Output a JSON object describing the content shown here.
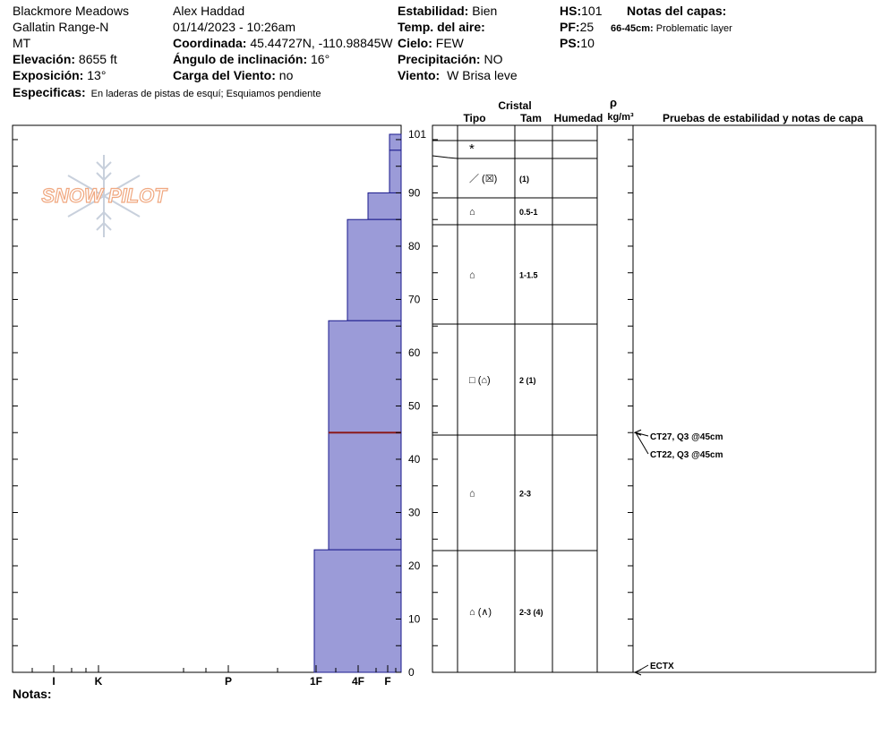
{
  "header": {
    "location": "Blackmore Meadows",
    "range": "Gallatin Range-N",
    "state": "MT",
    "elevation_label": "Elevación:",
    "elevation_value": "8655 ft",
    "aspect_label": "Exposición:",
    "aspect_value": "13°",
    "specifics_label": "Especificas:",
    "specifics_value": "En laderas de pistas de esquí; Esquiamos pendiente",
    "observer": "Alex Haddad",
    "datetime": "01/14/2023 - 10:26am",
    "coord_label": "Coordinada:",
    "coord_value": "45.44727N, -110.98845W",
    "slope_label": "Ángulo de inclinación:",
    "slope_value": "16°",
    "wind_load_label": "Carga del Viento:",
    "wind_load_value": "no",
    "stability_label": "Estabilidad:",
    "stability_value": "Bien",
    "air_temp_label": "Temp. del aire:",
    "sky_label": "Cielo:",
    "sky_value": "FEW",
    "precip_label": "Precipitación:",
    "precip_value": "NO",
    "wind_label": "Viento:",
    "wind_value": "W Brisa leve",
    "hs_label": "HS:",
    "hs_value": "101",
    "pf_label": "PF:",
    "pf_value": "25",
    "ps_label": "PS:",
    "ps_value": "10",
    "layer_notes_label": "Notas del capas:",
    "layer_note_range": "66-45cm:",
    "layer_note_text": "Problematic layer"
  },
  "logo_text": "SNOW PILOT",
  "notes_label": "Notas:",
  "columns": {
    "crystal": "Cristal",
    "type": "Tipo",
    "size": "Tam",
    "moisture": "Humedad",
    "density_symbol": "ρ",
    "density_unit": "kg/m³",
    "tests": "Pruebas de estabilidad y notas de capa"
  },
  "colors": {
    "hardness_fill": "#9b9bd8",
    "hardness_stroke": "#1a1a8c",
    "problem_layer": "#8b1a1a",
    "logo": "#f0a880"
  },
  "chart_data": {
    "type": "snow_profile",
    "depth_range": [
      0,
      101
    ],
    "depth_ticks": [
      0,
      10,
      20,
      30,
      40,
      50,
      60,
      70,
      80,
      90,
      101
    ],
    "hardness_scale": [
      "F",
      "4F",
      "1F",
      "P",
      "K",
      "I"
    ],
    "hardness_tick_labels": [
      "I",
      "K",
      "P",
      "1F",
      "4F",
      "F"
    ],
    "layers": [
      {
        "top": 101,
        "bottom": 98,
        "hardness": "F",
        "grain": "*",
        "size": ""
      },
      {
        "top": 98,
        "bottom": 90,
        "hardness": "F-",
        "grain": "／ (☒)",
        "size": "(1)"
      },
      {
        "top": 90,
        "bottom": 85,
        "hardness": "F+",
        "grain": "⌂",
        "size": "0.5-1"
      },
      {
        "top": 85,
        "bottom": 66,
        "hardness": "4F",
        "grain": "⌂",
        "size": "1-1.5"
      },
      {
        "top": 66,
        "bottom": 45,
        "hardness": "4F-",
        "grain": "□ (⌂)",
        "size": "2 (1)"
      },
      {
        "top": 45,
        "bottom": 23,
        "hardness": "4F-",
        "grain": "⌂",
        "size": "2-3"
      },
      {
        "top": 23,
        "bottom": 0,
        "hardness": "1F+",
        "grain": "⌂ (∧)",
        "size": "2-3 (4)"
      }
    ],
    "problem_layer_depth": 45,
    "tests": [
      {
        "depth": 45,
        "label": "CT27, Q3 @45cm"
      },
      {
        "depth": 45,
        "label": "CT22, Q3 @45cm"
      },
      {
        "depth": 0,
        "label": "ECTX"
      }
    ]
  }
}
